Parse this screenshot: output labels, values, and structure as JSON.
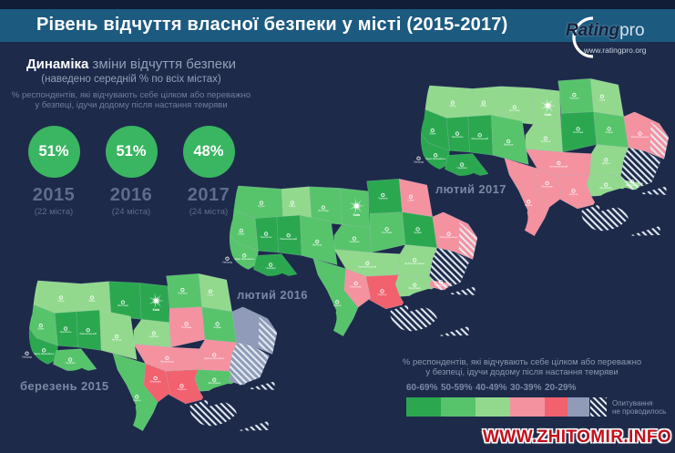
{
  "header": {
    "title": "Рівень відчуття власної безпеки у місті (2015-2017)"
  },
  "logo": {
    "brand_main": "Rating",
    "brand_suffix": "pro",
    "site": "www.ratingpro.org"
  },
  "panel": {
    "heading_bold": "Динаміка",
    "heading_rest": " зміни відчуття безпеки",
    "subheading": "(наведено середній % по всіх містах)",
    "note_line1": "% респондентів, які відчувають себе цілком або переважно",
    "note_line2": "у безпеці, ідучи додому після настання темряви",
    "stats": [
      {
        "value": "51%",
        "year": "2015",
        "cities": "(22 міста)"
      },
      {
        "value": "51%",
        "year": "2016",
        "cities": "(24 міста)"
      },
      {
        "value": "48%",
        "year": "2017",
        "cities": "(24 міста)"
      }
    ]
  },
  "maps": [
    {
      "id": "2015",
      "label": "березень 2015"
    },
    {
      "id": "2016",
      "label": "лютий 2016"
    },
    {
      "id": "2017",
      "label": "лютий 2017"
    }
  ],
  "legend": {
    "note_line1": "% респондентів, які відчувають себе цілком або переважно",
    "note_line2": "у безпеці, ідучи додому після настання темряви",
    "bins": [
      {
        "label": "60-69%",
        "color": "#2BA84F"
      },
      {
        "label": "50-59%",
        "color": "#57C46C"
      },
      {
        "label": "40-49%",
        "color": "#92D98E"
      },
      {
        "label": "30-39%",
        "color": "#F492A0"
      },
      {
        "label": "20-29%",
        "color": "#F2616E"
      }
    ],
    "no_survey": {
      "label_line1": "Опитування",
      "label_line2": "не проводилось",
      "color": "#8F9BB8"
    }
  },
  "watermark": "WWW.ZHITOMIR.INFO",
  "colors": {
    "background": "#1D2A4A",
    "banner": "#1C5A80",
    "top_strip": "#111C36",
    "circle_green": "#3AB561",
    "muted_text": "#8B97AF",
    "year_text": "#5E6C8D",
    "map_label": "#7C88A4",
    "watermark_red": "#C3101C",
    "no_survey_gray": "#8F9BB8"
  },
  "chart_data": {
    "type": "choropleth",
    "title": "Рівень відчуття власної безпеки у місті (2015-2017)",
    "metric": "% респондентів, які відчувають себе цілком або переважно у безпеці, ідучи додому після настання темряви",
    "averages": [
      {
        "wave": "березень 2015",
        "value_pct": 51,
        "cities_surveyed": 22
      },
      {
        "wave": "лютий 2016",
        "value_pct": 51,
        "cities_surveyed": 24
      },
      {
        "wave": "лютий 2017",
        "value_pct": 48,
        "cities_surveyed": 24
      }
    ],
    "bins": [
      "60-69%",
      "50-59%",
      "40-49%",
      "30-39%",
      "20-29%"
    ],
    "no_survey_label": "Опитування не проводилось",
    "regions": [
      {
        "key": "volyn",
        "city": "Луцьк",
        "y2015": "40-49",
        "y2016": "50-59",
        "y2017": "40-49"
      },
      {
        "key": "rivne",
        "city": "Рівне",
        "y2015": "40-49",
        "y2016": "40-49",
        "y2017": "40-49"
      },
      {
        "key": "zhytomyr",
        "city": "Житомир",
        "y2015": "60-69",
        "y2016": "50-59",
        "y2017": "40-49"
      },
      {
        "key": "kyiv",
        "city": "Київ",
        "y2015": "60-69",
        "y2016": "50-59",
        "y2017": "40-49"
      },
      {
        "key": "chernihiv",
        "city": "Чернігів",
        "y2015": "50-59",
        "y2016": "60-69",
        "y2017": "50-59"
      },
      {
        "key": "sumy",
        "city": "Суми",
        "y2015": "40-49",
        "y2016": "30-39",
        "y2017": "40-49"
      },
      {
        "key": "poltava",
        "city": "Полтава",
        "y2015": "30-39",
        "y2016": "50-59",
        "y2017": "60-69"
      },
      {
        "key": "kharkiv",
        "city": "Харків",
        "y2015": "50-59",
        "y2016": "60-69",
        "y2017": "50-59"
      },
      {
        "key": "luhansk",
        "city": "Сєвєродонецьк",
        "skip2015": true,
        "y2015": "no-survey",
        "y2016": "30-39",
        "y2017": "30-39"
      },
      {
        "key": "cherkasy",
        "city": "Черкаси",
        "y2015": "40-49",
        "y2016": "50-59",
        "y2017": "40-49"
      },
      {
        "key": "dnipro",
        "city": "Дніпро",
        "city2015": "Дніпропетровськ",
        "city2016": "Дніпропетровськ",
        "y2015": "30-39",
        "y2016": "40-49",
        "y2017": "40-49"
      },
      {
        "key": "donetsk",
        "city": "",
        "y2015": "no-survey-hatch",
        "y2016": "occupied",
        "y2017": "occupied"
      },
      {
        "key": "zaporizhzhia",
        "city": "Запоріжжя",
        "y2015": "50-59",
        "y2016": "40-49",
        "y2017": "40-49"
      },
      {
        "key": "kirovohrad",
        "city": "Кропивницький",
        "city2015": "Кіровоград",
        "y2015": "30-39",
        "y2016": "40-49",
        "y2017": "30-39"
      },
      {
        "key": "kherson",
        "city": "Херсон",
        "y2015": "20-29",
        "y2016": "20-29",
        "y2017": "30-39"
      },
      {
        "key": "mykolaiv",
        "city": "Миколаїв",
        "y2015": "20-29",
        "y2016": "30-39",
        "y2017": "30-39"
      },
      {
        "key": "lviv",
        "city": "Львів",
        "y2015": "50-59",
        "y2016": "50-59",
        "y2017": "60-69"
      },
      {
        "key": "ternopil",
        "city": "Тернопіль",
        "y2015": "60-69",
        "y2016": "60-69",
        "y2017": "60-69"
      },
      {
        "key": "khmelnytskyi",
        "city": "Хмельницький",
        "y2015": "60-69",
        "y2016": "60-69",
        "y2017": "60-69"
      },
      {
        "key": "vinnytsia",
        "city": "Вінниця",
        "y2015": "40-49",
        "y2016": "50-59",
        "y2017": "50-59"
      },
      {
        "key": "odesa",
        "city": "Одеса",
        "y2015": "50-59",
        "y2016": "50-59",
        "y2017": "30-39"
      },
      {
        "key": "zakarpattia",
        "city": "Ужгород",
        "y2015": "40-49",
        "y2016": "50-59",
        "y2017": "50-59"
      },
      {
        "key": "ivano-frankivsk",
        "city": "Івано-Франківськ",
        "y2015": "60-69",
        "y2016": "50-59",
        "y2017": "60-69"
      },
      {
        "key": "chernivtsi",
        "city": "Чернівці",
        "y2015": "50-59",
        "y2016": "60-69",
        "y2017": "60-69"
      },
      {
        "key": "mariupol",
        "city": "Маріуполь",
        "skip2015": true,
        "y2015": "no-survey-hatch",
        "y2016": "30-39",
        "y2017": "40-49"
      },
      {
        "key": "crimea",
        "city": "",
        "y2015": "occupied",
        "y2016": "occupied",
        "y2017": "occupied"
      }
    ]
  }
}
